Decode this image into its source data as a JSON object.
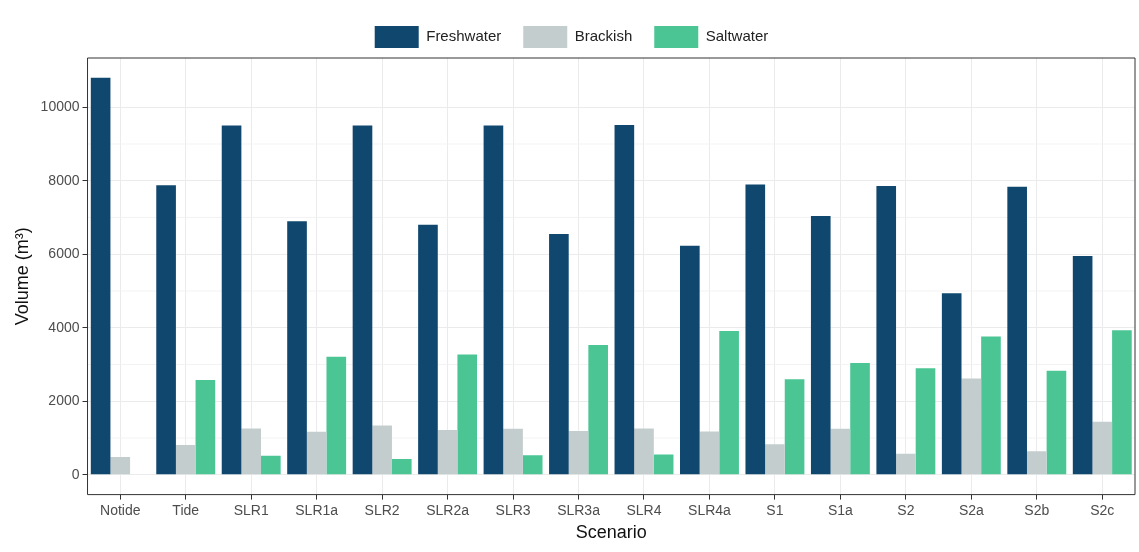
{
  "chart_data": {
    "type": "bar",
    "xlabel": "Scenario",
    "ylabel": "Volume (m³)",
    "categories": [
      "Notide",
      "Tide",
      "SLR1",
      "SLR1a",
      "SLR2",
      "SLR2a",
      "SLR3",
      "SLR3a",
      "SLR4",
      "SLR4a",
      "S1",
      "S1a",
      "S2",
      "S2a",
      "S2b",
      "S2c"
    ],
    "series": [
      {
        "name": "Freshwater",
        "color": "#10476e",
        "values": [
          10800,
          7880,
          9500,
          6900,
          9500,
          6800,
          9500,
          6550,
          9520,
          6230,
          7900,
          7040,
          7860,
          4940,
          7840,
          5950
        ]
      },
      {
        "name": "Brackish",
        "color": "#c3cdcd",
        "values": [
          480,
          810,
          1260,
          1170,
          1340,
          1220,
          1250,
          1190,
          1260,
          1180,
          830,
          1250,
          570,
          2620,
          640,
          1440
        ]
      },
      {
        "name": "Saltwater",
        "color": "#4bc594",
        "values": [
          0,
          2580,
          520,
          3210,
          430,
          3270,
          530,
          3530,
          550,
          3910,
          2600,
          3040,
          2900,
          3760,
          2830,
          3930
        ]
      }
    ],
    "ylim": [
      -540,
      11340
    ],
    "yticks": [
      0,
      2000,
      4000,
      6000,
      8000,
      10000
    ],
    "grid": true,
    "legend": "top"
  }
}
